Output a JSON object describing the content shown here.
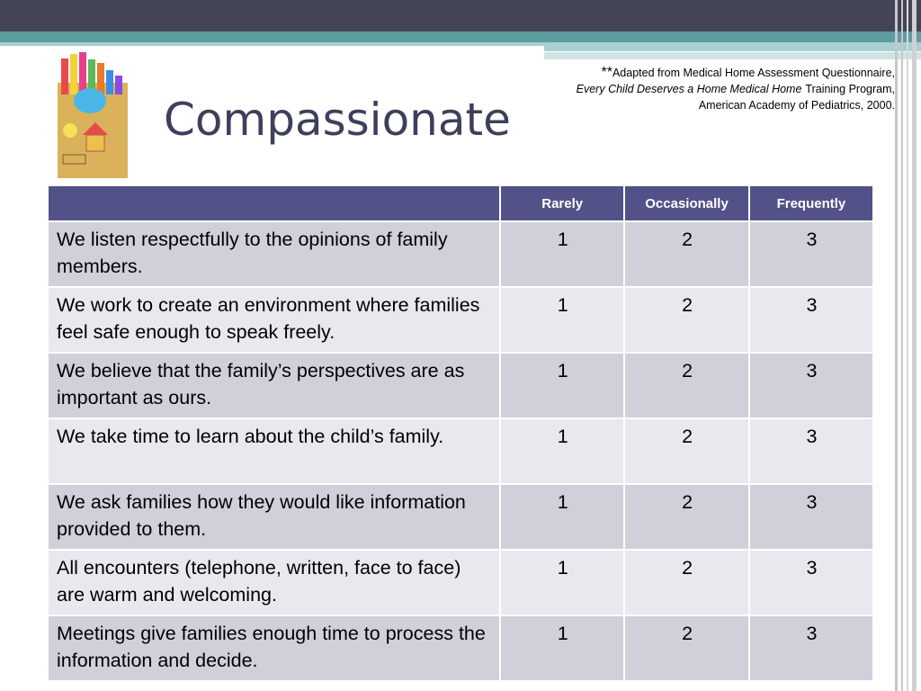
{
  "title": "Compassionate",
  "citation": {
    "prefix": "**",
    "line1": "Adapted from Medical Home Assessment Questionnaire,",
    "line2_italic": "Every Child Deserves a Home Medical Home",
    "line2_rest": "Training Program,",
    "line3": "American Academy of Pediatrics, 2000."
  },
  "table": {
    "header": [
      "Rarely",
      "Occasionally",
      "Frequently"
    ],
    "rows": [
      [
        "We listen respectfully to the opinions of family members.",
        1,
        2,
        3
      ],
      [
        "We work to create an environment where families feel safe enough to speak freely.",
        1,
        2,
        3
      ],
      [
        "We believe that the family’s perspectives are as important as ours.",
        1,
        2,
        3
      ],
      [
        "We take time to learn about the child’s family.",
        1,
        2,
        3
      ],
      [
        "We ask families how they would like information provided to them.",
        1,
        2,
        3
      ],
      [
        "All encounters (telephone, written, face to face) are warm and welcoming.",
        1,
        2,
        3
      ],
      [
        "Meetings give families enough time to process the information and decide.",
        1,
        2,
        3
      ]
    ]
  }
}
